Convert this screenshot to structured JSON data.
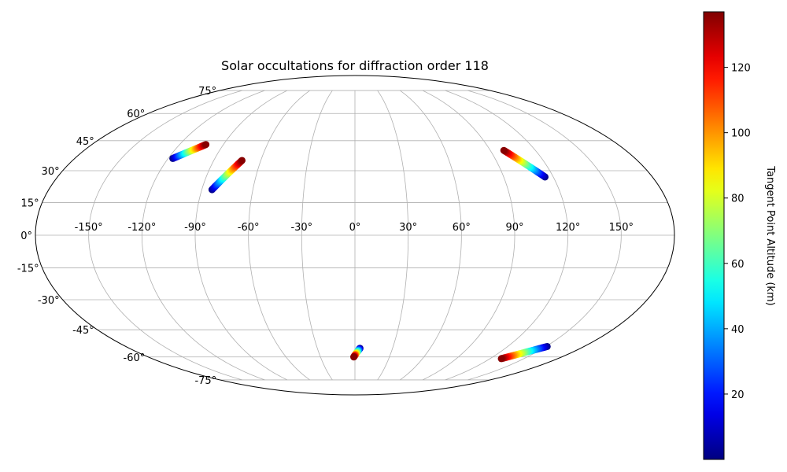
{
  "chart_data": {
    "type": "scatter",
    "projection": "mollweide",
    "title": "Solar occultations for diffraction order 118",
    "xlabel": "",
    "ylabel": "",
    "grid": true,
    "longitude_ticks": [
      -150,
      -120,
      -90,
      -60,
      -30,
      0,
      30,
      60,
      90,
      120,
      150
    ],
    "latitude_ticks": [
      -75,
      -60,
      -45,
      -30,
      -15,
      0,
      15,
      30,
      45,
      60,
      75
    ],
    "longitude_tick_labels": [
      "-150°",
      "-120°",
      "-90°",
      "-60°",
      "-30°",
      "0°",
      "30°",
      "60°",
      "90°",
      "120°",
      "150°"
    ],
    "latitude_tick_labels": [
      "-75°",
      "-60°",
      "-45°",
      "-30°",
      "-15°",
      "0°",
      "15°",
      "30°",
      "45°",
      "60°",
      "75°"
    ],
    "colorbar": {
      "label": "Tangent Point Altitude (km)",
      "colormap": "jet",
      "range": [
        0,
        137
      ],
      "ticks": [
        20,
        40,
        60,
        80,
        100,
        120
      ],
      "tick_labels": [
        "20",
        "40",
        "60",
        "80",
        "100",
        "120"
      ]
    },
    "occultations": [
      {
        "lon_low_alt": -117,
        "lat_low_alt": 36,
        "lon_high_alt": -102,
        "lat_high_alt": 43,
        "alt_min": 1,
        "alt_max": 136
      },
      {
        "lon_low_alt": -84,
        "lat_low_alt": 21,
        "lon_high_alt": -72,
        "lat_high_alt": 35,
        "alt_min": 1,
        "alt_max": 136
      },
      {
        "lon_low_alt": 115,
        "lat_low_alt": 27,
        "lon_high_alt": 99,
        "lat_high_alt": 40,
        "alt_min": 1,
        "alt_max": 136
      },
      {
        "lon_low_alt": 4,
        "lat_low_alt": -55,
        "lon_high_alt": -1,
        "lat_high_alt": -60,
        "alt_min": 1,
        "alt_max": 136
      },
      {
        "lon_low_alt": 151,
        "lat_low_alt": -54,
        "lon_high_alt": 130,
        "lat_high_alt": -61,
        "alt_min": 1,
        "alt_max": 136
      }
    ]
  }
}
